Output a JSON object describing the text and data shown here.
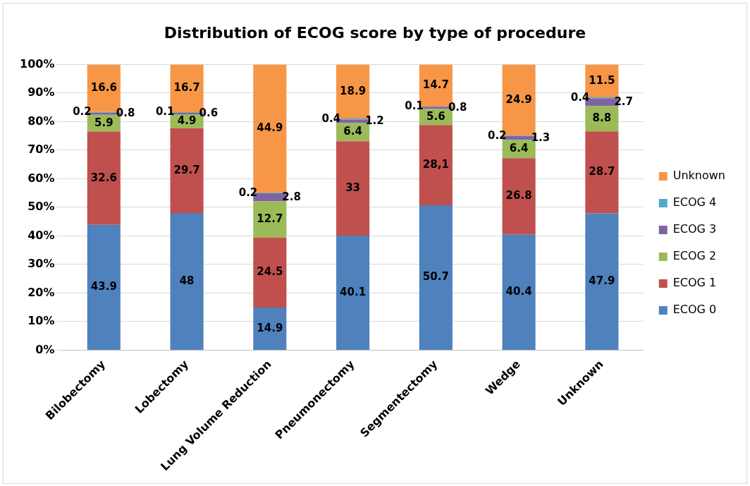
{
  "chart_data": {
    "type": "bar",
    "title": "Distribution of ECOG score by type of procedure",
    "stacked": true,
    "grid": "y",
    "legend": "right",
    "categories": [
      "Bilobectomy",
      "Lobectomy",
      "Lung Volume Reduction",
      "Pneumonectomy",
      "Segmentectomy",
      "Wedge",
      "Unknown"
    ],
    "ylim": [
      0,
      100
    ],
    "yticks": [
      {
        "value": 0,
        "label": "0%"
      },
      {
        "value": 10,
        "label": "10%"
      },
      {
        "value": 20,
        "label": "20%"
      },
      {
        "value": 30,
        "label": "30%"
      },
      {
        "value": 40,
        "label": "40%"
      },
      {
        "value": 50,
        "label": "50%"
      },
      {
        "value": 60,
        "label": "60%"
      },
      {
        "value": 70,
        "label": "70%"
      },
      {
        "value": 80,
        "label": "80%"
      },
      {
        "value": 90,
        "label": "90%"
      },
      {
        "value": 100,
        "label": "100%"
      }
    ],
    "series": [
      {
        "name": "ECOG 0",
        "color": "#4f81bd",
        "values": [
          43.9,
          48,
          14.9,
          40.1,
          50.7,
          40.4,
          47.9
        ],
        "value_labels": [
          "43.9",
          "48",
          "14.9",
          "40.1",
          "50.7",
          "40.4",
          "47.9"
        ]
      },
      {
        "name": "ECOG 1",
        "color": "#c0504d",
        "values": [
          32.6,
          29.7,
          24.5,
          33,
          28.1,
          26.8,
          28.7
        ],
        "value_labels": [
          "32.6",
          "29.7",
          "24.5",
          "33",
          "28,1",
          "26.8",
          "28.7"
        ]
      },
      {
        "name": "ECOG 2",
        "color": "#9bbb59",
        "values": [
          5.9,
          4.9,
          12.7,
          6.4,
          5.6,
          6.4,
          8.8
        ],
        "value_labels": [
          "5.9",
          "4.9",
          "12.7",
          "6.4",
          "5.6",
          "6.4",
          "8.8"
        ]
      },
      {
        "name": "ECOG 3",
        "color": "#8064a2",
        "values": [
          0.8,
          0.6,
          2.8,
          1.2,
          0.8,
          1.3,
          2.7
        ],
        "value_labels": [
          "0.8",
          "0.6",
          "2.8",
          "1.2",
          "0.8",
          "1.3",
          "2.7"
        ]
      },
      {
        "name": "ECOG 4",
        "color": "#4bacc6",
        "values": [
          0.2,
          0.1,
          0.2,
          0.4,
          0.1,
          0.2,
          0.4
        ],
        "value_labels": [
          "0.2",
          "0.1",
          "0.2",
          "0.4",
          "0.1",
          "0.2",
          "0.4"
        ]
      },
      {
        "name": "Unknown",
        "color": "#f79646",
        "values": [
          16.6,
          16.7,
          44.9,
          18.9,
          14.7,
          24.9,
          11.5
        ],
        "value_labels": [
          "16.6",
          "16.7",
          "44.9",
          "18.9",
          "14.7",
          "24.9",
          "11.5"
        ]
      }
    ]
  }
}
